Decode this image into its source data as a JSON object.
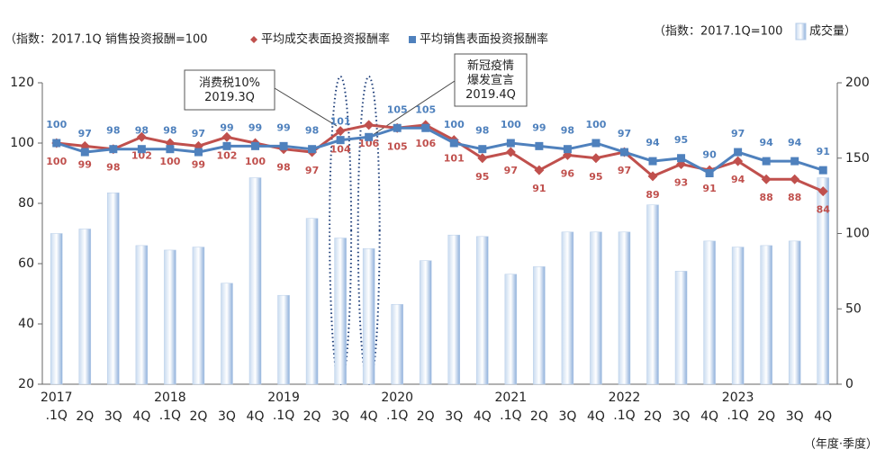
{
  "chart_data": {
    "type": "bar-line",
    "legend_note_left": "（指数：2017.1Q 销售投资报酬=100",
    "legend_note_right": "（指数：2017.1Q=100",
    "x_axis_note": "（年度·季度）",
    "categories": [
      "2017\n.1Q",
      "2Q",
      "3Q",
      "4Q",
      "2018\n.1Q",
      "2Q",
      "3Q",
      "4Q",
      "2019\n.1Q",
      "2Q",
      "3Q",
      "4Q",
      "2020\n.1Q",
      "2Q",
      "3Q",
      "4Q",
      "2021\n.1Q",
      "2Q",
      "3Q",
      "4Q",
      "2022\n.1Q",
      "2Q",
      "3Q",
      "4Q",
      "2023\n.1Q",
      "2Q",
      "3Q",
      "4Q"
    ],
    "series": [
      {
        "name": "成交量）",
        "type": "bar",
        "axis": "y2",
        "color": "#9dbbe0",
        "values": [
          100,
          103,
          127,
          92,
          89,
          91,
          67,
          137,
          59,
          110,
          97,
          90,
          53,
          82,
          99,
          98,
          73,
          78,
          101,
          101,
          101,
          119,
          75,
          95,
          91,
          92,
          95,
          137
        ]
      },
      {
        "name": "平均成交表面投资报酬率",
        "type": "line",
        "marker": "diamond",
        "color": "#c0504d",
        "values": [
          100,
          99,
          98,
          102,
          100,
          99,
          102,
          100,
          98,
          97,
          104,
          106,
          105,
          106,
          101,
          95,
          97,
          91,
          96,
          95,
          97,
          89,
          93,
          91,
          94,
          88,
          88,
          84
        ]
      },
      {
        "name": "平均销售表面投资报酬率",
        "type": "line",
        "marker": "square",
        "color": "#4f81bd",
        "values": [
          100,
          97,
          98,
          98,
          98,
          97,
          99,
          99,
          99,
          98,
          101,
          102,
          105,
          105,
          100,
          98,
          100,
          99,
          98,
          100,
          97,
          94,
          95,
          90,
          97,
          94,
          94,
          91
        ],
        "value_labels": [
          "100",
          "97",
          "98",
          "98",
          "98",
          "97",
          "99",
          "99",
          "99",
          "98",
          "101",
          null,
          "105",
          "105",
          "100",
          "98",
          "100",
          "99",
          "98",
          "100",
          "97",
          "94",
          "95",
          "90",
          "97",
          "94",
          "94",
          "91"
        ]
      }
    ],
    "ylim": [
      20,
      120
    ],
    "yticks": [
      20,
      40,
      60,
      80,
      100,
      120
    ],
    "y2lim": [
      0,
      200
    ],
    "y2ticks": [
      0,
      50,
      100,
      150,
      200
    ],
    "annotations": [
      {
        "text": "消费税10%\n2019.3Q",
        "category": 10
      },
      {
        "text": "新冠疫情\n爆发宣言\n2019.4Q",
        "category": 11
      }
    ]
  }
}
